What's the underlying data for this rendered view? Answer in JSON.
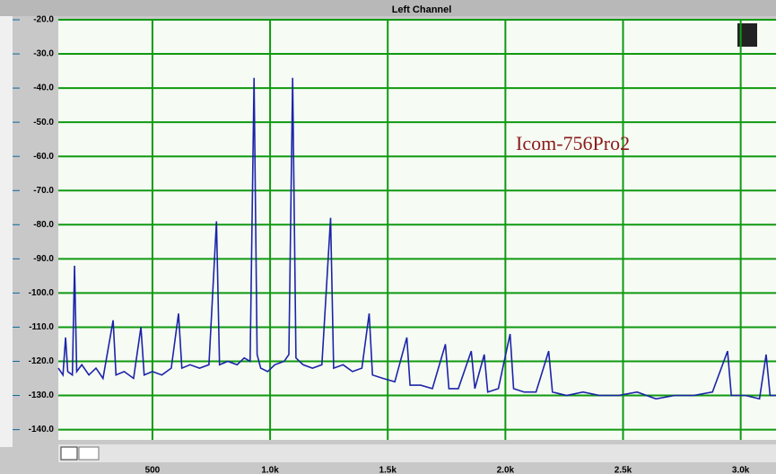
{
  "chart_data": {
    "type": "line",
    "title": "Left Channel",
    "annotation": "Icom-756Pro2",
    "x": [
      100,
      120,
      131,
      140,
      160,
      169,
      178,
      200,
      230,
      260,
      290,
      333,
      345,
      380,
      420,
      451,
      465,
      500,
      540,
      580,
      611,
      625,
      660,
      700,
      740,
      772,
      785,
      820,
      860,
      890,
      915,
      932,
      945,
      960,
      990,
      1020,
      1060,
      1080,
      1096,
      1110,
      1140,
      1180,
      1220,
      1257,
      1270,
      1310,
      1350,
      1390,
      1421,
      1435,
      1480,
      1530,
      1581,
      1595,
      1640,
      1690,
      1745,
      1760,
      1800,
      1855,
      1870,
      1910,
      1925,
      1970,
      2020,
      2035,
      2080,
      2130,
      2184,
      2200,
      2260,
      2330,
      2400,
      2480,
      2560,
      2640,
      2720,
      2800,
      2880,
      2944,
      2960,
      3020,
      3080,
      3108,
      3125,
      3150
    ],
    "series": [
      {
        "color": "#1c24a8",
        "values": [
          -122,
          -124,
          -113,
          -123,
          -124,
          -92,
          -123,
          -121,
          -124,
          -122,
          -125,
          -108,
          -124,
          -123,
          -125,
          -110,
          -124,
          -123,
          -124,
          -122,
          -106,
          -122,
          -121,
          -122,
          -121,
          -79,
          -121,
          -120,
          -121,
          -119,
          -120,
          -37,
          -118,
          -122,
          -123,
          -121,
          -120,
          -118,
          -37,
          -119,
          -121,
          -122,
          -121,
          -78,
          -122,
          -121,
          -123,
          -122,
          -106,
          -124,
          -125,
          -126,
          -113,
          -127,
          -127,
          -128,
          -115,
          -128,
          -128,
          -117,
          -128,
          -118,
          -129,
          -128,
          -112,
          -128,
          -129,
          -129,
          -117,
          -129,
          -130,
          -129,
          -130,
          -130,
          -129,
          -131,
          -130,
          -130,
          -129,
          -117,
          -130,
          -130,
          -131,
          -118,
          -130,
          -130
        ]
      }
    ],
    "xlim": [
      100,
      3150
    ],
    "xticks": [
      500,
      {
        "value": 1000,
        "label": "1.0k"
      },
      {
        "value": 1500,
        "label": "1.5k"
      },
      {
        "value": 2000,
        "label": "2.0k"
      },
      {
        "value": 2500,
        "label": "2.5k"
      },
      {
        "value": 3000,
        "label": "3.0k"
      }
    ],
    "ylim": [
      -143,
      -20
    ],
    "yticks": [
      {
        "value": -20,
        "label": "-20.0"
      },
      {
        "value": -30,
        "label": "-30.0"
      },
      {
        "value": -40,
        "label": "-40.0"
      },
      {
        "value": -50,
        "label": "-50.0"
      },
      {
        "value": -60,
        "label": "-60.0"
      },
      {
        "value": -70,
        "label": "-70.0"
      },
      {
        "value": -80,
        "label": "-80.0"
      },
      {
        "value": -90,
        "label": "-90.0"
      },
      {
        "value": -100,
        "label": "-100.0"
      },
      {
        "value": -110,
        "label": "-110.0"
      },
      {
        "value": -120,
        "label": "-120.0"
      },
      {
        "value": -130,
        "label": "-130.0"
      },
      {
        "value": -140,
        "label": "-140.0"
      }
    ],
    "grid": true,
    "grid_color": "#0f9a10"
  }
}
